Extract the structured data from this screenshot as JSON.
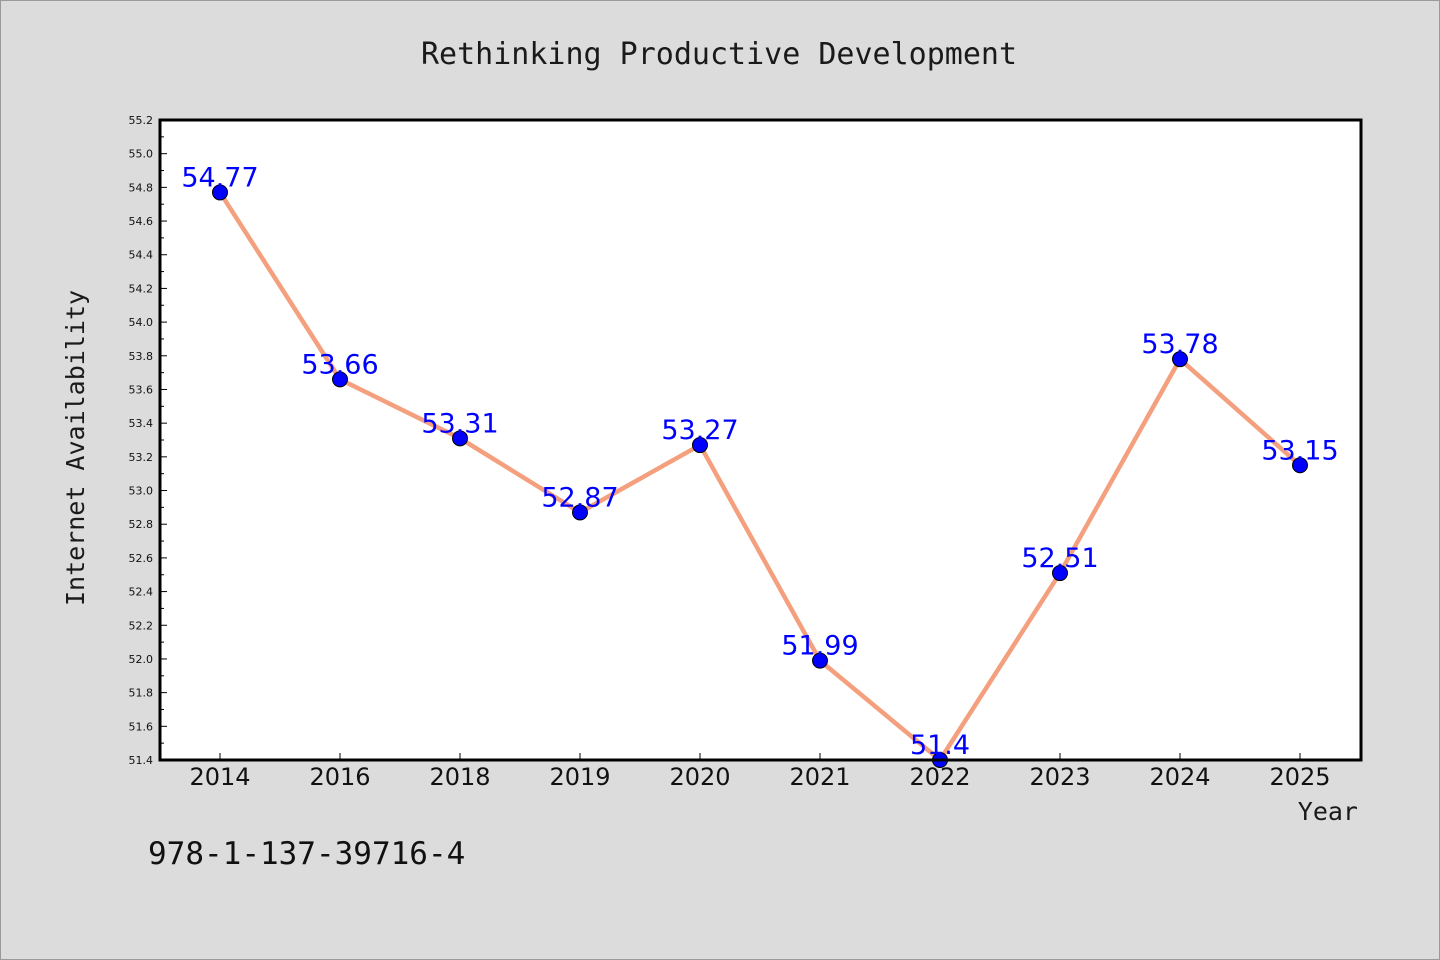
{
  "colors": {
    "background": "#dcdcdc",
    "plot_background": "#ffffff",
    "line": "#f4a07e",
    "marker": "#0000ff",
    "data_label": "#0000ff"
  },
  "footer": {
    "isbn": "978-1-137-39716-4"
  },
  "chart_data": {
    "type": "line",
    "title": "Rethinking Productive Development",
    "xlabel": "Year",
    "ylabel": "Internet Availability",
    "categories": [
      "2014",
      "2016",
      "2018",
      "2019",
      "2020",
      "2021",
      "2022",
      "2023",
      "2024",
      "2025"
    ],
    "series": [
      {
        "values": [
          54.77,
          53.66,
          53.31,
          52.87,
          53.27,
          51.99,
          51.4,
          52.51,
          53.78,
          53.15
        ]
      }
    ],
    "data_labels": [
      "54.77",
      "53.66",
      "53.31",
      "52.87",
      "53.27",
      "51.99",
      "51.4",
      "52.51",
      "53.78",
      "53.15"
    ],
    "ylim": [
      51.4,
      55.2
    ],
    "yticks": [
      "51.4",
      "51.6",
      "51.8",
      "52.0",
      "52.2",
      "52.4",
      "52.6",
      "52.8",
      "53.0",
      "53.2",
      "53.4",
      "53.6",
      "53.8",
      "54.0",
      "54.2",
      "54.4",
      "54.6",
      "54.8",
      "55.0",
      "55.2"
    ],
    "grid": false,
    "legend": "none"
  }
}
